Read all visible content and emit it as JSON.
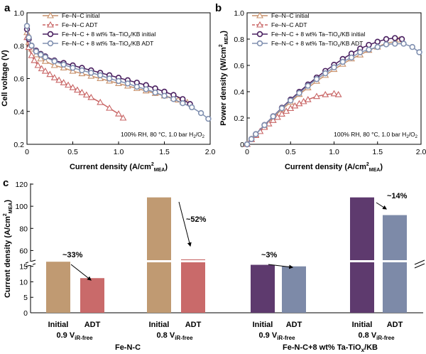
{
  "chart_data": [
    {
      "type": "line",
      "panel": "a",
      "xlabel": "Current density (A/cm2MEA)",
      "ylabel": "Cell voltage (V)",
      "xlim": [
        0,
        2.0
      ],
      "ylim": [
        0.2,
        1.0
      ],
      "xticks": [
        "0",
        "0.5",
        "1.0",
        "1.5",
        "2.0"
      ],
      "yticks": [
        "0.2",
        "0.4",
        "0.6",
        "0.8",
        "1.0"
      ],
      "annotation": "100% RH, 80 °C, 1.0 bar H2/O2",
      "series": [
        {
          "name": "Fe–N–C initial",
          "color": "#c8906a",
          "marker": "triangle",
          "x": [
            0,
            0.02,
            0.05,
            0.1,
            0.15,
            0.2,
            0.3,
            0.4,
            0.5,
            0.6,
            0.7,
            0.8,
            0.9,
            1.0,
            1.1,
            1.2,
            1.3,
            1.4,
            1.5,
            1.6,
            1.65,
            1.7,
            1.75
          ],
          "y": [
            0.88,
            0.82,
            0.78,
            0.745,
            0.72,
            0.705,
            0.68,
            0.665,
            0.645,
            0.63,
            0.615,
            0.6,
            0.585,
            0.57,
            0.555,
            0.54,
            0.525,
            0.51,
            0.495,
            0.48,
            0.47,
            0.46,
            0.455
          ]
        },
        {
          "name": "Fe–N–C ADT",
          "color": "#c86464",
          "marker": "triangle",
          "x": [
            0,
            0.02,
            0.05,
            0.08,
            0.12,
            0.16,
            0.2,
            0.25,
            0.3,
            0.35,
            0.4,
            0.45,
            0.5,
            0.55,
            0.6,
            0.65,
            0.7,
            0.8,
            0.9,
            1.0,
            1.05
          ],
          "y": [
            0.85,
            0.79,
            0.74,
            0.71,
            0.68,
            0.66,
            0.645,
            0.625,
            0.605,
            0.59,
            0.575,
            0.56,
            0.545,
            0.53,
            0.515,
            0.5,
            0.485,
            0.455,
            0.42,
            0.385,
            0.36
          ]
        },
        {
          "name": "Fe–N–C + 8 wt% Ta–TiOx/KB initial",
          "color": "#4a2060",
          "marker": "circle",
          "x": [
            0,
            0.02,
            0.05,
            0.1,
            0.15,
            0.2,
            0.3,
            0.4,
            0.5,
            0.6,
            0.7,
            0.8,
            0.9,
            1.0,
            1.1,
            1.2,
            1.3,
            1.4,
            1.5,
            1.6,
            1.7,
            1.78
          ],
          "y": [
            0.9,
            0.84,
            0.8,
            0.77,
            0.75,
            0.735,
            0.71,
            0.695,
            0.68,
            0.665,
            0.65,
            0.635,
            0.62,
            0.605,
            0.59,
            0.575,
            0.56,
            0.54,
            0.52,
            0.5,
            0.475,
            0.445
          ]
        },
        {
          "name": "Fe–N–C + 8 wt% Ta–TiOx/KB ADT",
          "color": "#8090b0",
          "marker": "circle",
          "x": [
            0,
            0.02,
            0.05,
            0.1,
            0.15,
            0.2,
            0.3,
            0.4,
            0.5,
            0.6,
            0.7,
            0.8,
            0.9,
            1.0,
            1.1,
            1.2,
            1.3,
            1.4,
            1.5,
            1.6,
            1.7,
            1.8,
            1.9,
            1.98
          ],
          "y": [
            0.92,
            0.85,
            0.8,
            0.765,
            0.745,
            0.73,
            0.705,
            0.685,
            0.665,
            0.65,
            0.635,
            0.62,
            0.6,
            0.585,
            0.57,
            0.55,
            0.535,
            0.515,
            0.495,
            0.475,
            0.45,
            0.425,
            0.39,
            0.355
          ]
        }
      ]
    },
    {
      "type": "line",
      "panel": "b",
      "xlabel": "Current density (A/cm2MEA)",
      "ylabel": "Power density (W/cm2MEA)",
      "xlim": [
        0,
        2.0
      ],
      "ylim": [
        0,
        1.0
      ],
      "xticks": [
        "0",
        "0.5",
        "1.0",
        "1.5",
        "2.0"
      ],
      "yticks": [
        "0",
        "0.2",
        "0.4",
        "0.6",
        "0.8",
        "1.0"
      ],
      "annotation": "100% RH, 80 °C, 1.0 bar H2/O2",
      "series": [
        {
          "name": "Fe–N–C initial",
          "color": "#c8906a",
          "marker": "triangle",
          "x": [
            0,
            0.05,
            0.1,
            0.2,
            0.3,
            0.4,
            0.5,
            0.6,
            0.7,
            0.8,
            0.9,
            1.0,
            1.1,
            1.2,
            1.3,
            1.4,
            1.5,
            1.6,
            1.7,
            1.75
          ],
          "y": [
            0,
            0.04,
            0.075,
            0.14,
            0.205,
            0.265,
            0.32,
            0.38,
            0.43,
            0.48,
            0.525,
            0.57,
            0.61,
            0.65,
            0.68,
            0.715,
            0.74,
            0.77,
            0.78,
            0.795
          ]
        },
        {
          "name": "Fe–N–C ADT",
          "color": "#c86464",
          "marker": "triangle",
          "x": [
            0,
            0.05,
            0.1,
            0.15,
            0.2,
            0.25,
            0.3,
            0.35,
            0.4,
            0.45,
            0.5,
            0.55,
            0.6,
            0.65,
            0.7,
            0.8,
            0.9,
            1.0,
            1.05
          ],
          "y": [
            0,
            0.037,
            0.068,
            0.098,
            0.129,
            0.156,
            0.182,
            0.206,
            0.23,
            0.252,
            0.273,
            0.292,
            0.309,
            0.325,
            0.34,
            0.364,
            0.378,
            0.385,
            0.378
          ]
        },
        {
          "name": "Fe–N–C + 8 wt% Ta–TiOx/KB initial",
          "color": "#4a2060",
          "marker": "circle",
          "x": [
            0,
            0.05,
            0.1,
            0.2,
            0.3,
            0.4,
            0.5,
            0.6,
            0.7,
            0.8,
            0.9,
            1.0,
            1.1,
            1.2,
            1.3,
            1.4,
            1.5,
            1.6,
            1.7,
            1.78
          ],
          "y": [
            0,
            0.04,
            0.077,
            0.147,
            0.213,
            0.278,
            0.34,
            0.399,
            0.455,
            0.508,
            0.558,
            0.605,
            0.649,
            0.69,
            0.728,
            0.756,
            0.78,
            0.8,
            0.808,
            0.8
          ]
        },
        {
          "name": "Fe–N–C + 8 wt% Ta–TiOx/KB ADT",
          "color": "#8090b0",
          "marker": "circle",
          "x": [
            0,
            0.05,
            0.1,
            0.2,
            0.3,
            0.4,
            0.5,
            0.6,
            0.7,
            0.8,
            0.9,
            1.0,
            1.1,
            1.2,
            1.3,
            1.4,
            1.5,
            1.6,
            1.7,
            1.8,
            1.9,
            1.98
          ],
          "y": [
            0,
            0.04,
            0.077,
            0.146,
            0.212,
            0.274,
            0.333,
            0.39,
            0.445,
            0.496,
            0.54,
            0.585,
            0.627,
            0.66,
            0.7,
            0.72,
            0.74,
            0.76,
            0.765,
            0.765,
            0.74,
            0.7
          ]
        }
      ]
    },
    {
      "type": "bar",
      "panel": "c",
      "ylabel": "Current density (A/cm2MEA)",
      "yticks_upper": [
        "60",
        "80",
        "100",
        "120"
      ],
      "yticks_lower": [
        "0",
        "5",
        "10",
        "15"
      ],
      "axis_break": "between 17 and 50",
      "bars": [
        {
          "label": "Initial",
          "group": "0.9 ViR-free Fe-N-C",
          "value": 16.5,
          "color": "#c09a72"
        },
        {
          "label": "ADT",
          "group": "0.9 ViR-free Fe-N-C",
          "value": 11.2,
          "color": "#c96a6a"
        },
        {
          "label": "Initial",
          "group": "0.8 ViR-free Fe-N-C",
          "value": 108,
          "color": "#c09a72"
        },
        {
          "label": "ADT",
          "group": "0.8 ViR-free Fe-N-C",
          "value": 52,
          "color": "#c96a6a"
        },
        {
          "label": "Initial",
          "group": "0.9 ViR-free Fe-N-C+8 wt% Ta-TiOx/KB",
          "value": 15.5,
          "color": "#5e3a6e"
        },
        {
          "label": "ADT",
          "group": "0.9 ViR-free Fe-N-C+8 wt% Ta-TiOx/KB",
          "value": 15.0,
          "color": "#7d8aa8"
        },
        {
          "label": "Initial",
          "group": "0.8 ViR-free Fe-N-C+8 wt% Ta-TiOx/KB",
          "value": 108,
          "color": "#5e3a6e"
        },
        {
          "label": "ADT",
          "group": "0.8 ViR-free Fe-N-C+8 wt% Ta-TiOx/KB",
          "value": 92,
          "color": "#7d8aa8"
        }
      ],
      "annotations": [
        "~33%",
        "~52%",
        "~3%",
        "~14%"
      ],
      "voltage_labels": [
        "0.9 V",
        "0.8 V",
        "0.9 V",
        "0.8 V"
      ],
      "voltage_sub": "iR-free",
      "group_labels": [
        "Fe-N-C",
        "Fe-N-C+8 wt% Ta-TiO",
        "/KB"
      ],
      "group_sub": "x"
    }
  ],
  "labels": {
    "panel_a": "a",
    "panel_b": "b",
    "panel_c": "c"
  }
}
